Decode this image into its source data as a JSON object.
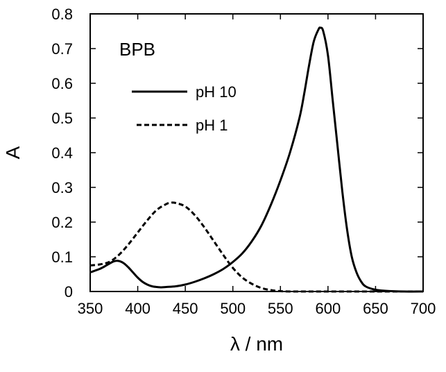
{
  "chart_data": {
    "type": "line",
    "annotation": "BPB",
    "xlabel": "λ / nm",
    "ylabel": "A",
    "xlim": [
      350,
      700
    ],
    "ylim": [
      0,
      0.8
    ],
    "xticks": [
      350,
      400,
      450,
      500,
      550,
      600,
      650,
      700
    ],
    "yticks": [
      0,
      0.1,
      0.2,
      0.3,
      0.4,
      0.5,
      0.6,
      0.7,
      0.8
    ],
    "xtick_labels": [
      "350",
      "400",
      "450",
      "500",
      "550",
      "600",
      "650",
      "700"
    ],
    "ytick_labels": [
      "0",
      "0.1",
      "0.2",
      "0.3",
      "0.4",
      "0.5",
      "0.6",
      "0.7",
      "0.8"
    ],
    "grid": false,
    "legend_position": "upper-left",
    "series": [
      {
        "name": "pH 10",
        "style": "solid",
        "color": "#000000",
        "x": [
          350,
          355,
          360,
          365,
          370,
          375,
          380,
          385,
          390,
          395,
          400,
          405,
          410,
          415,
          420,
          425,
          430,
          440,
          450,
          460,
          470,
          480,
          490,
          500,
          510,
          520,
          530,
          540,
          550,
          560,
          570,
          575,
          580,
          585,
          590,
          592,
          595,
          600,
          605,
          610,
          615,
          620,
          625,
          630,
          635,
          640,
          650,
          660,
          680,
          700
        ],
        "y": [
          0.055,
          0.06,
          0.065,
          0.072,
          0.08,
          0.087,
          0.088,
          0.082,
          0.07,
          0.055,
          0.04,
          0.028,
          0.02,
          0.015,
          0.013,
          0.012,
          0.013,
          0.015,
          0.02,
          0.028,
          0.038,
          0.05,
          0.065,
          0.085,
          0.11,
          0.145,
          0.19,
          0.25,
          0.32,
          0.4,
          0.5,
          0.57,
          0.65,
          0.72,
          0.755,
          0.76,
          0.75,
          0.68,
          0.55,
          0.42,
          0.29,
          0.18,
          0.1,
          0.055,
          0.028,
          0.014,
          0.005,
          0.002,
          0.0,
          0.0
        ]
      },
      {
        "name": "pH 1",
        "style": "dashed",
        "color": "#000000",
        "x": [
          350,
          360,
          370,
          380,
          390,
          400,
          410,
          420,
          430,
          435,
          440,
          450,
          460,
          470,
          480,
          490,
          500,
          510,
          520,
          530,
          540,
          550,
          560,
          580,
          600,
          650,
          700
        ],
        "y": [
          0.075,
          0.078,
          0.085,
          0.105,
          0.135,
          0.17,
          0.205,
          0.235,
          0.252,
          0.256,
          0.255,
          0.245,
          0.22,
          0.185,
          0.145,
          0.105,
          0.068,
          0.04,
          0.022,
          0.01,
          0.004,
          0.001,
          0.0,
          0.0,
          0.0,
          0.0,
          0.0
        ]
      }
    ]
  }
}
